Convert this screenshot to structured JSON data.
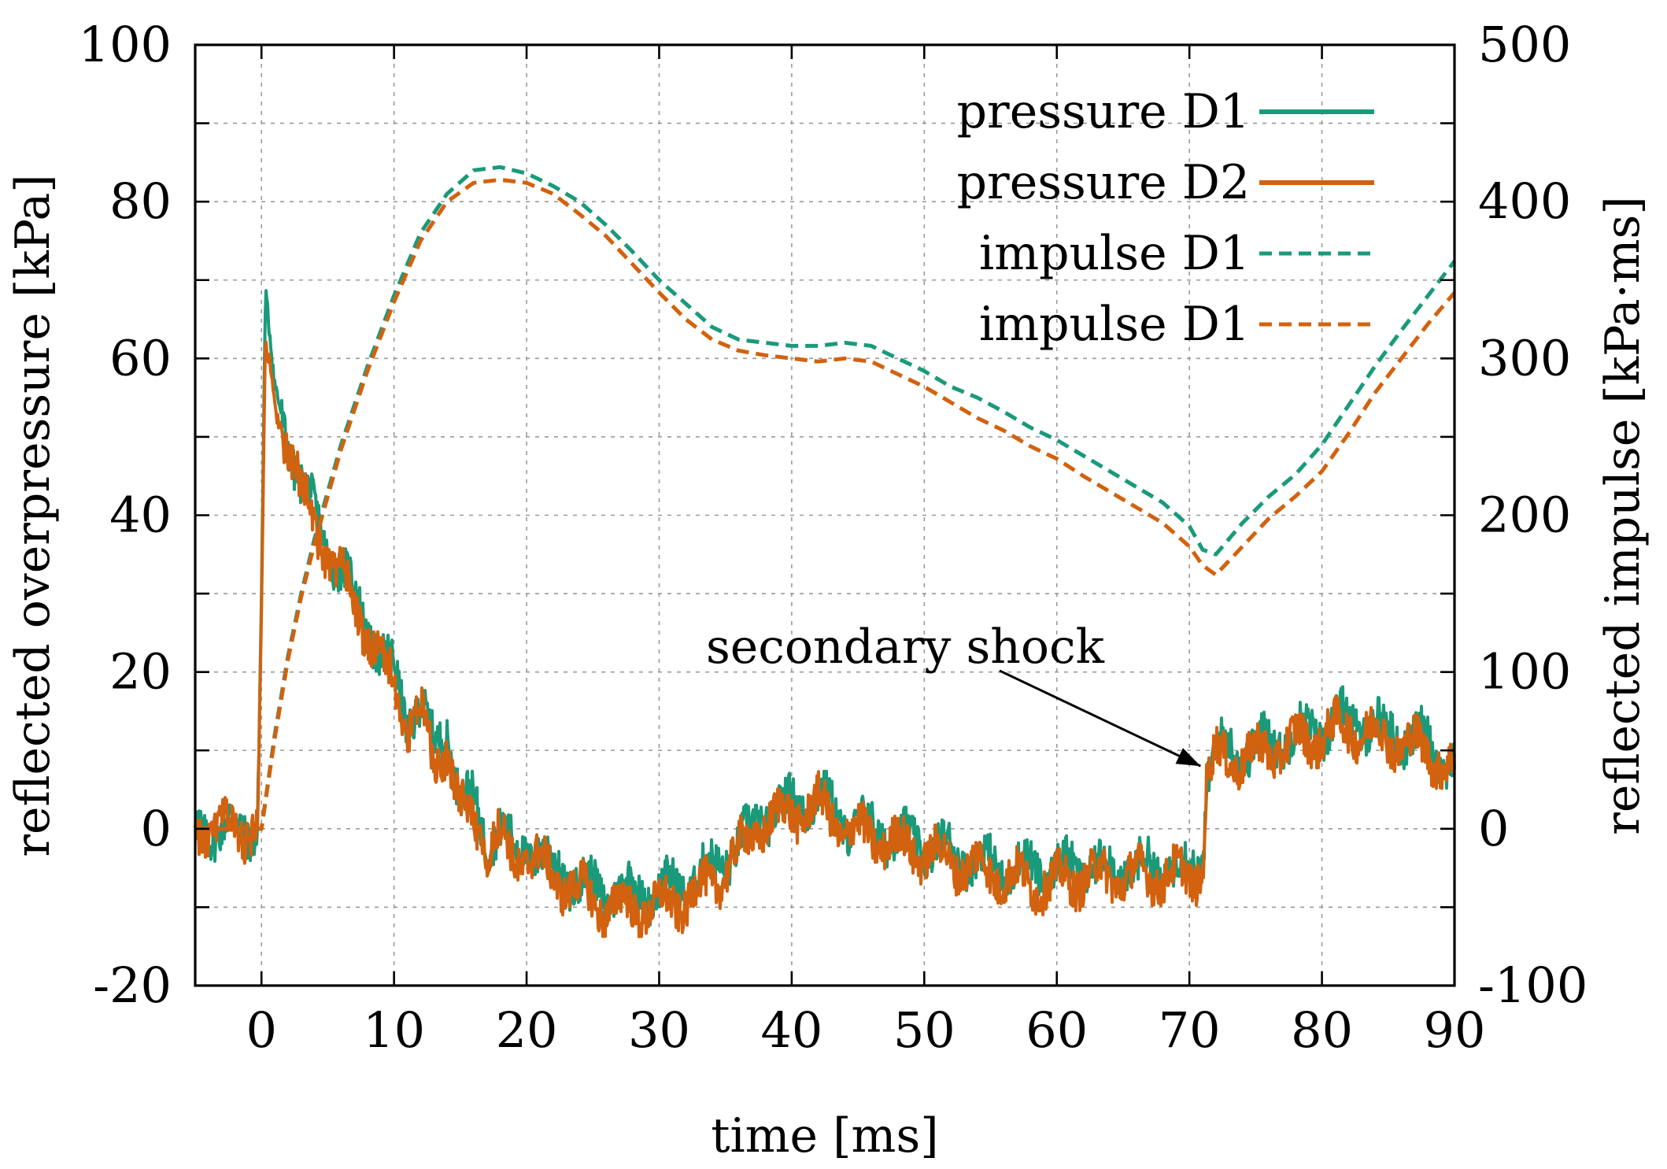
{
  "chart_data": {
    "type": "line",
    "title": "",
    "xlabel": "time [ms]",
    "ylabel": "reflected overpressure [kPa]",
    "y2label": "reflected impulse [kPa·ms]",
    "xlim": [
      -5,
      90
    ],
    "ylim": [
      -20,
      100
    ],
    "y2lim": [
      -100,
      500
    ],
    "xticks": [
      0,
      10,
      20,
      30,
      40,
      50,
      60,
      70,
      80,
      90
    ],
    "yticks": [
      -20,
      0,
      20,
      40,
      60,
      80,
      100
    ],
    "y2ticks": [
      -100,
      0,
      100,
      200,
      300,
      400,
      500
    ],
    "xtick_labels": [
      "0",
      "10",
      "20",
      "30",
      "40",
      "50",
      "60",
      "70",
      "80",
      "90"
    ],
    "ytick_labels": [
      "-20",
      "0",
      "20",
      "40",
      "60",
      "80",
      "100"
    ],
    "y2tick_labels": [
      "-100",
      "0",
      "100",
      "200",
      "300",
      "400",
      "500"
    ],
    "grid": true,
    "legend_position": "top-right",
    "series": [
      {
        "name": "pressure D1",
        "axis": "left",
        "style": "solid",
        "color": "#1a9a7a",
        "x": [
          -5,
          -4,
          -3,
          -2,
          -1,
          -0.3,
          0,
          0.3,
          1,
          2,
          3,
          4,
          5,
          6,
          7,
          8,
          9,
          10,
          11,
          12,
          13,
          14,
          15,
          16,
          17,
          18,
          19,
          20,
          22,
          24,
          26,
          28,
          30,
          32,
          34,
          36,
          38,
          40,
          42,
          44,
          46,
          48,
          50,
          52,
          54,
          56,
          58,
          60,
          62,
          64,
          66,
          68,
          70,
          71,
          71.3,
          72,
          74,
          76,
          78,
          80,
          82,
          84,
          86,
          88,
          90
        ],
        "y": [
          0,
          0,
          0,
          0,
          0,
          0,
          30,
          68,
          56,
          50,
          44,
          40,
          36,
          33,
          30,
          26,
          22,
          20,
          14,
          16,
          10,
          13,
          4,
          3,
          -1,
          0,
          -3,
          -2,
          -5,
          -7,
          -8,
          -8,
          -8,
          -7,
          -5,
          -2,
          2,
          3,
          4,
          1,
          0,
          -1,
          -2,
          -3,
          -4,
          -5,
          -5,
          -5,
          -5,
          -5,
          -5,
          -5,
          -5,
          -4,
          7,
          10,
          10,
          11,
          12,
          13,
          14,
          13,
          12,
          11,
          8
        ]
      },
      {
        "name": "pressure D2",
        "axis": "left",
        "style": "solid",
        "color": "#d2620f",
        "x": [
          -5,
          -4,
          -3,
          -2,
          -1,
          -0.3,
          0,
          0.3,
          1,
          2,
          3,
          4,
          5,
          6,
          7,
          8,
          9,
          10,
          11,
          12,
          13,
          14,
          15,
          16,
          17,
          18,
          19,
          20,
          22,
          24,
          26,
          28,
          30,
          32,
          34,
          36,
          38,
          40,
          42,
          44,
          46,
          48,
          50,
          52,
          54,
          56,
          58,
          60,
          62,
          64,
          66,
          68,
          70,
          71,
          71.3,
          72,
          74,
          76,
          78,
          80,
          82,
          84,
          86,
          88,
          90
        ],
        "y": [
          0,
          0,
          0,
          0,
          0,
          0,
          28,
          62,
          54,
          49,
          43,
          39,
          35,
          32,
          29,
          25,
          21,
          19,
          13,
          15,
          8,
          11,
          2,
          1,
          -2,
          -1,
          -4,
          -3,
          -6,
          -8,
          -10,
          -10,
          -10,
          -9,
          -7,
          -3,
          1,
          2,
          3,
          0,
          -1,
          -2,
          -3,
          -4,
          -5,
          -6,
          -7,
          -7,
          -6,
          -6,
          -6,
          -6,
          -6,
          -5,
          6,
          9,
          9,
          10,
          11,
          12,
          13,
          12,
          11,
          10,
          7
        ]
      },
      {
        "name": "impulse D1",
        "axis": "right",
        "style": "dashed",
        "color": "#1a9a7a",
        "x": [
          -5,
          0,
          1,
          2,
          3,
          4,
          5,
          6,
          7,
          8,
          10,
          12,
          14,
          16,
          18,
          20,
          22,
          24,
          26,
          28,
          30,
          32,
          34,
          36,
          38,
          40,
          42,
          44,
          46,
          48,
          50,
          52,
          54,
          56,
          58,
          60,
          62,
          64,
          66,
          68,
          70,
          71,
          72,
          74,
          76,
          78,
          80,
          82,
          84,
          86,
          88,
          90
        ],
        "y": [
          0,
          0,
          60,
          110,
          150,
          185,
          215,
          245,
          270,
          295,
          340,
          380,
          405,
          420,
          422,
          418,
          410,
          400,
          385,
          368,
          350,
          335,
          320,
          312,
          310,
          308,
          308,
          310,
          308,
          300,
          292,
          282,
          275,
          266,
          256,
          248,
          238,
          228,
          218,
          208,
          193,
          178,
          175,
          195,
          212,
          226,
          245,
          270,
          295,
          318,
          340,
          362
        ]
      },
      {
        "name": "impulse D1",
        "axis": "right",
        "style": "dashed",
        "color": "#d2620f",
        "x": [
          -5,
          0,
          1,
          2,
          3,
          4,
          5,
          6,
          7,
          8,
          10,
          12,
          14,
          16,
          18,
          20,
          22,
          24,
          26,
          28,
          30,
          32,
          34,
          36,
          38,
          40,
          42,
          44,
          46,
          48,
          50,
          52,
          54,
          56,
          58,
          60,
          62,
          64,
          66,
          68,
          70,
          71,
          72,
          74,
          76,
          78,
          80,
          82,
          84,
          86,
          88,
          90
        ],
        "y": [
          0,
          0,
          58,
          108,
          148,
          182,
          212,
          242,
          267,
          292,
          336,
          375,
          400,
          412,
          414,
          412,
          405,
          392,
          378,
          360,
          342,
          325,
          312,
          305,
          302,
          300,
          298,
          300,
          298,
          290,
          282,
          272,
          262,
          254,
          244,
          236,
          225,
          215,
          205,
          195,
          180,
          168,
          162,
          180,
          198,
          212,
          228,
          252,
          278,
          300,
          322,
          342
        ]
      }
    ],
    "annotations": [
      {
        "text": "secondary shock",
        "x": 71.2,
        "y": 7
      }
    ]
  }
}
